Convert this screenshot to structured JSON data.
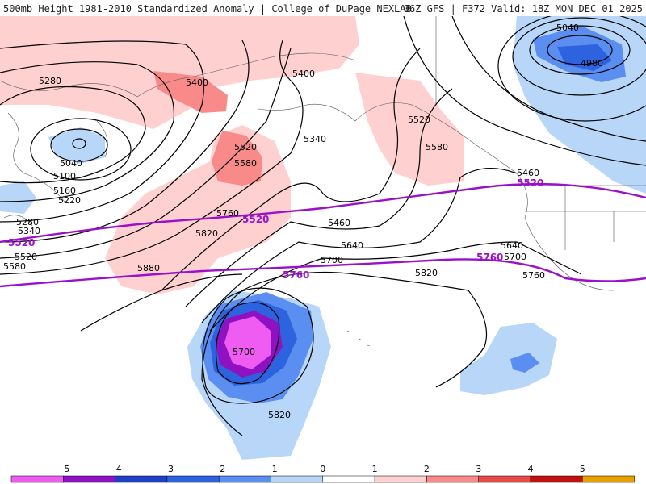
{
  "header": {
    "left_title": "500mb Height 1981-2010 Standardized Anomaly | College of DuPage NEXLAB",
    "right_title": "06Z GFS | F372 Valid: 18Z MON DEC 01 2025"
  },
  "contour_labels": [
    {
      "id": "l5040a",
      "text": "5040"
    },
    {
      "id": "l4980",
      "text": "4980"
    },
    {
      "id": "l5280",
      "text": "5280"
    },
    {
      "id": "l5400a",
      "text": "5400"
    },
    {
      "id": "l5400b",
      "text": "5400"
    },
    {
      "id": "l5340a",
      "text": "5340"
    },
    {
      "id": "l5520a",
      "text": "5520"
    },
    {
      "id": "l5580a",
      "text": "5580"
    },
    {
      "id": "l5520b",
      "text": "5520"
    },
    {
      "id": "l5580b",
      "text": "5580"
    },
    {
      "id": "l5040b",
      "text": "5040"
    },
    {
      "id": "l5100",
      "text": "5100"
    },
    {
      "id": "l5160",
      "text": "5160"
    },
    {
      "id": "l5220",
      "text": "5220"
    },
    {
      "id": "l5280b",
      "text": "5280"
    },
    {
      "id": "l5340b",
      "text": "5340"
    },
    {
      "id": "l5520c",
      "text": "5520"
    },
    {
      "id": "l5580c",
      "text": "5580"
    },
    {
      "id": "l5460a",
      "text": "5460"
    },
    {
      "id": "l5760a",
      "text": "5760"
    },
    {
      "id": "l5820a",
      "text": "5820"
    },
    {
      "id": "l5460b",
      "text": "5460"
    },
    {
      "id": "l5640a",
      "text": "5640"
    },
    {
      "id": "l5700a",
      "text": "5700"
    },
    {
      "id": "l5880",
      "text": "5880"
    },
    {
      "id": "l5820b",
      "text": "5820"
    },
    {
      "id": "l5640b",
      "text": "5640"
    },
    {
      "id": "l5700b",
      "text": "5700"
    },
    {
      "id": "l5760b",
      "text": "5760"
    },
    {
      "id": "l5700c",
      "text": "5700"
    },
    {
      "id": "l5820c",
      "text": "5820"
    }
  ],
  "highlight_labels": [
    {
      "id": "p5520a",
      "text": "5520"
    },
    {
      "id": "p5520b",
      "text": "5520"
    },
    {
      "id": "p5520c",
      "text": "5520"
    },
    {
      "id": "p5760a",
      "text": "5760"
    },
    {
      "id": "p5760b",
      "text": "5760"
    }
  ],
  "colorbar": {
    "ticks": [
      "−5",
      "−4",
      "−3",
      "−2",
      "−1",
      "0",
      "1",
      "2",
      "3",
      "4",
      "5"
    ],
    "colors": [
      "#ef5cf2",
      "#8f12c2",
      "#1e3fc6",
      "#2e63e0",
      "#5a8ef0",
      "#b8d6f8",
      "#ffffff",
      "#ffd0d0",
      "#f88a8a",
      "#e84a4a",
      "#c01010",
      "#e8a000"
    ]
  },
  "colors": {
    "contour": "#000000",
    "highlight_contour": "#9b11c8"
  }
}
